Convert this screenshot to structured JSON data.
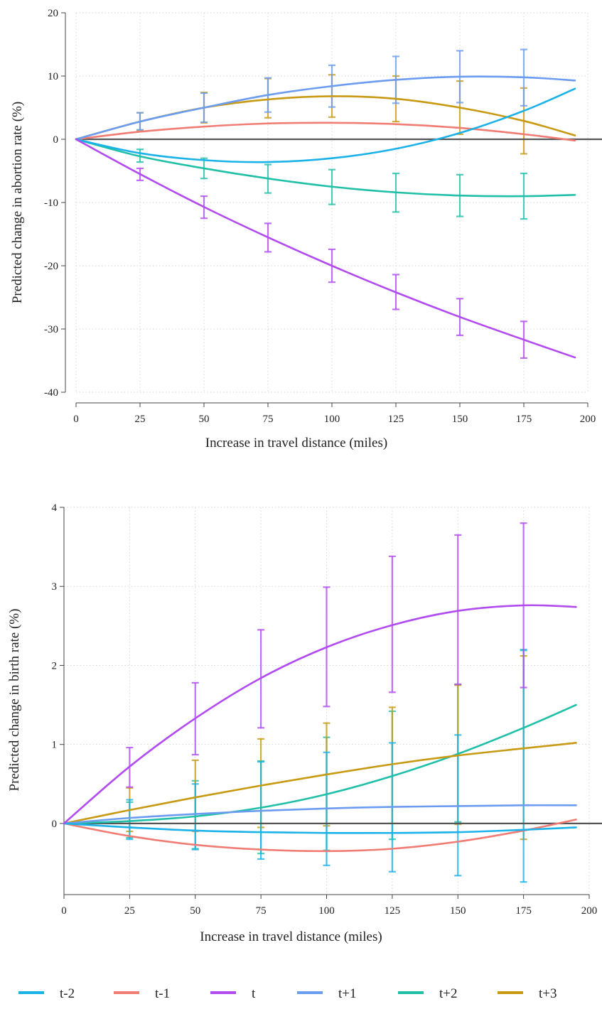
{
  "series_styles": [
    {
      "name": "t-2",
      "color": "#1ab2e8"
    },
    {
      "name": "t-1",
      "color": "#f07c74"
    },
    {
      "name": "t",
      "color": "#b24cf0"
    },
    {
      "name": "t+1",
      "color": "#6c9cf0"
    },
    {
      "name": "t+2",
      "color": "#20c0a8"
    },
    {
      "name": "t+3",
      "color": "#c89a14"
    }
  ],
  "legend": {
    "placement": "bottom",
    "items": [
      "t-2",
      "t-1",
      "t",
      "t+1",
      "t+2",
      "t+3"
    ]
  },
  "chart_data": [
    {
      "type": "line",
      "xlabel": "Increase in travel distance (miles)",
      "ylabel": "Predicted change in abortion rate (%)",
      "xlim": [
        0,
        200
      ],
      "ylim": [
        -40,
        20
      ],
      "xticks": [
        0,
        25,
        50,
        75,
        100,
        125,
        150,
        175,
        200
      ],
      "yticks": [
        -40,
        -30,
        -20,
        -10,
        0,
        10,
        20
      ],
      "grid": true,
      "x": [
        0,
        25,
        50,
        75,
        100,
        125,
        150,
        175,
        195
      ],
      "ci_x": [
        25,
        50,
        75,
        100,
        125,
        150,
        175
      ],
      "series": [
        {
          "name": "t-2",
          "values": [
            0,
            -2.2,
            -3.3,
            -3.6,
            -3.0,
            -1.5,
            1.0,
            4.5,
            8.0
          ]
        },
        {
          "name": "t-1",
          "values": [
            0,
            1.2,
            2.0,
            2.5,
            2.6,
            2.4,
            1.8,
            0.8,
            -0.2
          ]
        },
        {
          "name": "t",
          "values": [
            0,
            -5.5,
            -10.7,
            -15.5,
            -20.0,
            -24.2,
            -28.1,
            -31.7,
            -34.5
          ],
          "ci_low": [
            -6.5,
            -12.5,
            -17.8,
            -22.6,
            -26.9,
            -31.0,
            -34.6
          ],
          "ci_high": [
            -4.6,
            -9.0,
            -13.3,
            -17.4,
            -21.4,
            -25.2,
            -28.8
          ]
        },
        {
          "name": "t+1",
          "values": [
            0,
            2.8,
            5.0,
            7.0,
            8.4,
            9.4,
            9.9,
            9.8,
            9.3
          ],
          "ci_low": [
            1.5,
            2.7,
            4.3,
            5.1,
            5.7,
            5.8,
            5.3
          ],
          "ci_high": [
            4.2,
            7.3,
            9.7,
            11.7,
            13.1,
            14.0,
            14.2
          ]
        },
        {
          "name": "t+2",
          "values": [
            0,
            -2.7,
            -4.6,
            -6.2,
            -7.5,
            -8.4,
            -8.9,
            -9.0,
            -8.8
          ],
          "ci_low": [
            -3.6,
            -6.2,
            -8.5,
            -10.3,
            -11.5,
            -12.2,
            -12.6
          ],
          "ci_high": [
            -1.6,
            -3.0,
            -4.0,
            -4.8,
            -5.4,
            -5.6,
            -5.4
          ]
        },
        {
          "name": "t+3",
          "values": [
            0,
            2.8,
            5.0,
            6.3,
            6.8,
            6.4,
            5.0,
            2.9,
            0.6
          ],
          "ci_low": [
            1.4,
            2.6,
            3.4,
            3.5,
            2.8,
            0.8,
            -2.3
          ],
          "ci_high": [
            4.2,
            7.4,
            9.6,
            10.2,
            10.0,
            9.2,
            8.1
          ]
        }
      ]
    },
    {
      "type": "line",
      "xlabel": "Increase in travel distance (miles)",
      "ylabel": "Predicted change in birth rate (%)",
      "xlim": [
        0,
        200
      ],
      "ylim": [
        -0.9,
        4
      ],
      "xticks": [
        0,
        25,
        50,
        75,
        100,
        125,
        150,
        175,
        200
      ],
      "yticks": [
        0,
        1,
        2,
        3,
        4
      ],
      "grid": true,
      "x": [
        0,
        25,
        50,
        75,
        100,
        125,
        150,
        175,
        195
      ],
      "ci_x": [
        25,
        50,
        75,
        100,
        125,
        150,
        175
      ],
      "series": [
        {
          "name": "t-2",
          "values": [
            0,
            -0.05,
            -0.09,
            -0.11,
            -0.12,
            -0.12,
            -0.11,
            -0.08,
            -0.05
          ],
          "ci_low": [
            -0.2,
            -0.33,
            -0.45,
            -0.53,
            -0.61,
            -0.66,
            -0.74
          ],
          "ci_high": [
            0.3,
            0.5,
            0.78,
            0.9,
            1.02,
            1.12,
            2.2
          ]
        },
        {
          "name": "t-1",
          "values": [
            0,
            -0.16,
            -0.27,
            -0.33,
            -0.35,
            -0.32,
            -0.23,
            -0.09,
            0.05
          ]
        },
        {
          "name": "t",
          "values": [
            0,
            0.72,
            1.33,
            1.84,
            2.23,
            2.51,
            2.69,
            2.76,
            2.74
          ],
          "ci_low": [
            0.46,
            0.87,
            1.21,
            1.48,
            1.66,
            1.76,
            1.72
          ],
          "ci_high": [
            0.96,
            1.78,
            2.45,
            2.99,
            3.38,
            3.65,
            3.8
          ]
        },
        {
          "name": "t+1",
          "values": [
            0,
            0.07,
            0.12,
            0.16,
            0.19,
            0.21,
            0.22,
            0.23,
            0.23
          ]
        },
        {
          "name": "t+2",
          "values": [
            0,
            0.03,
            0.09,
            0.2,
            0.37,
            0.6,
            0.88,
            1.21,
            1.5
          ],
          "ci_low": [
            -0.18,
            -0.32,
            -0.38,
            -0.34,
            -0.2,
            0.02,
            0.23
          ],
          "ci_high": [
            0.27,
            0.54,
            0.79,
            1.09,
            1.42,
            1.76,
            2.19
          ]
        },
        {
          "name": "t+3",
          "values": [
            0,
            0.17,
            0.33,
            0.48,
            0.62,
            0.75,
            0.86,
            0.95,
            1.02
          ],
          "ci_low": [
            -0.1,
            -0.1,
            -0.05,
            -0.03,
            0.0,
            -0.01,
            -0.2
          ],
          "ci_high": [
            0.45,
            0.8,
            1.07,
            1.27,
            1.47,
            1.75,
            2.12
          ]
        }
      ]
    }
  ]
}
